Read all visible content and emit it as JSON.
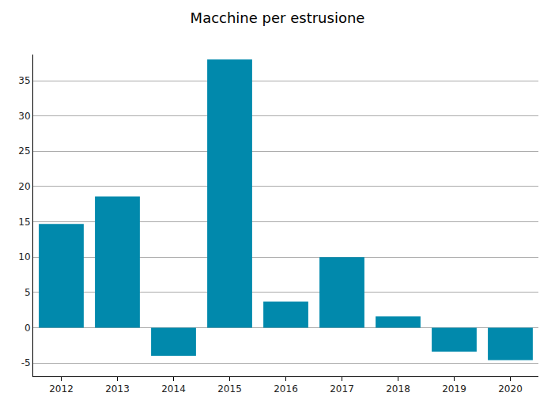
{
  "chart_data": {
    "type": "bar",
    "title": "Macchine per estrusione",
    "categories": [
      "2012",
      "2013",
      "2014",
      "2015",
      "2016",
      "2017",
      "2018",
      "2019",
      "2020"
    ],
    "values": [
      14.7,
      18.6,
      -4.0,
      38.0,
      3.7,
      10.0,
      1.6,
      -3.4,
      -4.6
    ],
    "color": "#0189ac",
    "ylim": [
      -6.9,
      38.7
    ],
    "yticks": [
      -5,
      0,
      5,
      10,
      15,
      20,
      25,
      30,
      35
    ],
    "grid": true
  }
}
